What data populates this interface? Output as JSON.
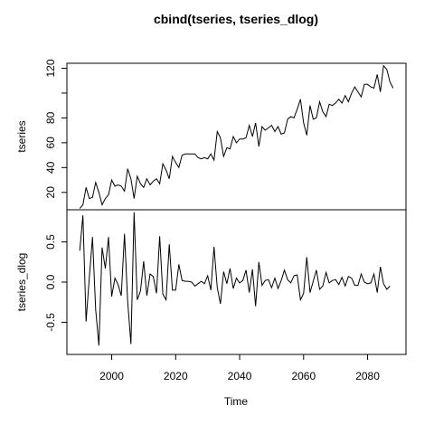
{
  "chart_data": {
    "type": "line",
    "title": "cbind(tseries, tseries_dlog)",
    "xlabel": "Time",
    "x_start": 1990,
    "x_ticks": [
      2000,
      2020,
      2040,
      2060,
      2080
    ],
    "xlim": [
      1986,
      2092
    ],
    "panels": [
      {
        "name": "tseries",
        "ylabel": "tseries",
        "ylim": [
          6,
          124
        ],
        "y_ticks": [
          20,
          40,
          60,
          80,
          100,
          120
        ],
        "y_tick_labels": [
          "20",
          "40",
          "60",
          "80",
          "",
          "120"
        ],
        "values": [
          7,
          10,
          24,
          15,
          16,
          28,
          20,
          10,
          15,
          18,
          30,
          25,
          26,
          25,
          21,
          39,
          31,
          15,
          33,
          27,
          24,
          31,
          26,
          29,
          31,
          27,
          43,
          38,
          31,
          49,
          44,
          40,
          50,
          51,
          51,
          51,
          51,
          48,
          47,
          48,
          47,
          51,
          46,
          69,
          64,
          49,
          56,
          55,
          65,
          60,
          63,
          63,
          64,
          74,
          65,
          76,
          57,
          73,
          70,
          72,
          74,
          69,
          73,
          67,
          68,
          79,
          81,
          80,
          87,
          95,
          76,
          66,
          90,
          79,
          80,
          93,
          85,
          81,
          91,
          90,
          92,
          95,
          92,
          98,
          93,
          100,
          105,
          101,
          97,
          107,
          107,
          105,
          104,
          115,
          101,
          122,
          119,
          109,
          104
        ]
      },
      {
        "name": "tseries_dlog",
        "ylabel": "tseries_dlog",
        "ylim": [
          -0.9,
          0.9
        ],
        "y_ticks": [
          -0.5,
          0.0,
          0.5
        ],
        "y_tick_labels": [
          "-0.5",
          "0.0",
          "0.5"
        ],
        "values": [
          0.39,
          0.83,
          -0.49,
          0.06,
          0.56,
          -0.34,
          -0.79,
          0.43,
          0.17,
          0.56,
          -0.18,
          0.05,
          -0.03,
          -0.17,
          0.6,
          -0.24,
          -0.77,
          0.87,
          -0.22,
          -0.11,
          0.26,
          -0.17,
          0.1,
          0.07,
          -0.14,
          0.57,
          -0.15,
          -0.22,
          0.47,
          -0.1,
          -0.1,
          0.22,
          0.02,
          0.01,
          0.01,
          0.0,
          -0.05,
          -0.02,
          0.01,
          -0.02,
          0.08,
          -0.1,
          0.44,
          -0.07,
          -0.27,
          0.13,
          -0.02,
          0.17,
          -0.08,
          0.05,
          -0.01,
          0.02,
          0.15,
          -0.13,
          0.16,
          -0.3,
          0.25,
          -0.04,
          0.02,
          0.03,
          -0.07,
          0.05,
          -0.08,
          0.02,
          0.15,
          0.03,
          -0.01,
          0.08,
          0.09,
          -0.22,
          -0.14,
          0.31,
          -0.13,
          0.01,
          0.15,
          -0.09,
          -0.05,
          0.12,
          -0.01,
          0.02,
          0.03,
          -0.03,
          0.06,
          -0.05,
          0.07,
          0.05,
          -0.04,
          -0.04,
          0.1,
          0.0,
          -0.02,
          -0.01,
          0.1,
          -0.13,
          0.19,
          -0.02,
          -0.09,
          -0.05
        ]
      }
    ],
    "grid": false,
    "legend": "none"
  }
}
